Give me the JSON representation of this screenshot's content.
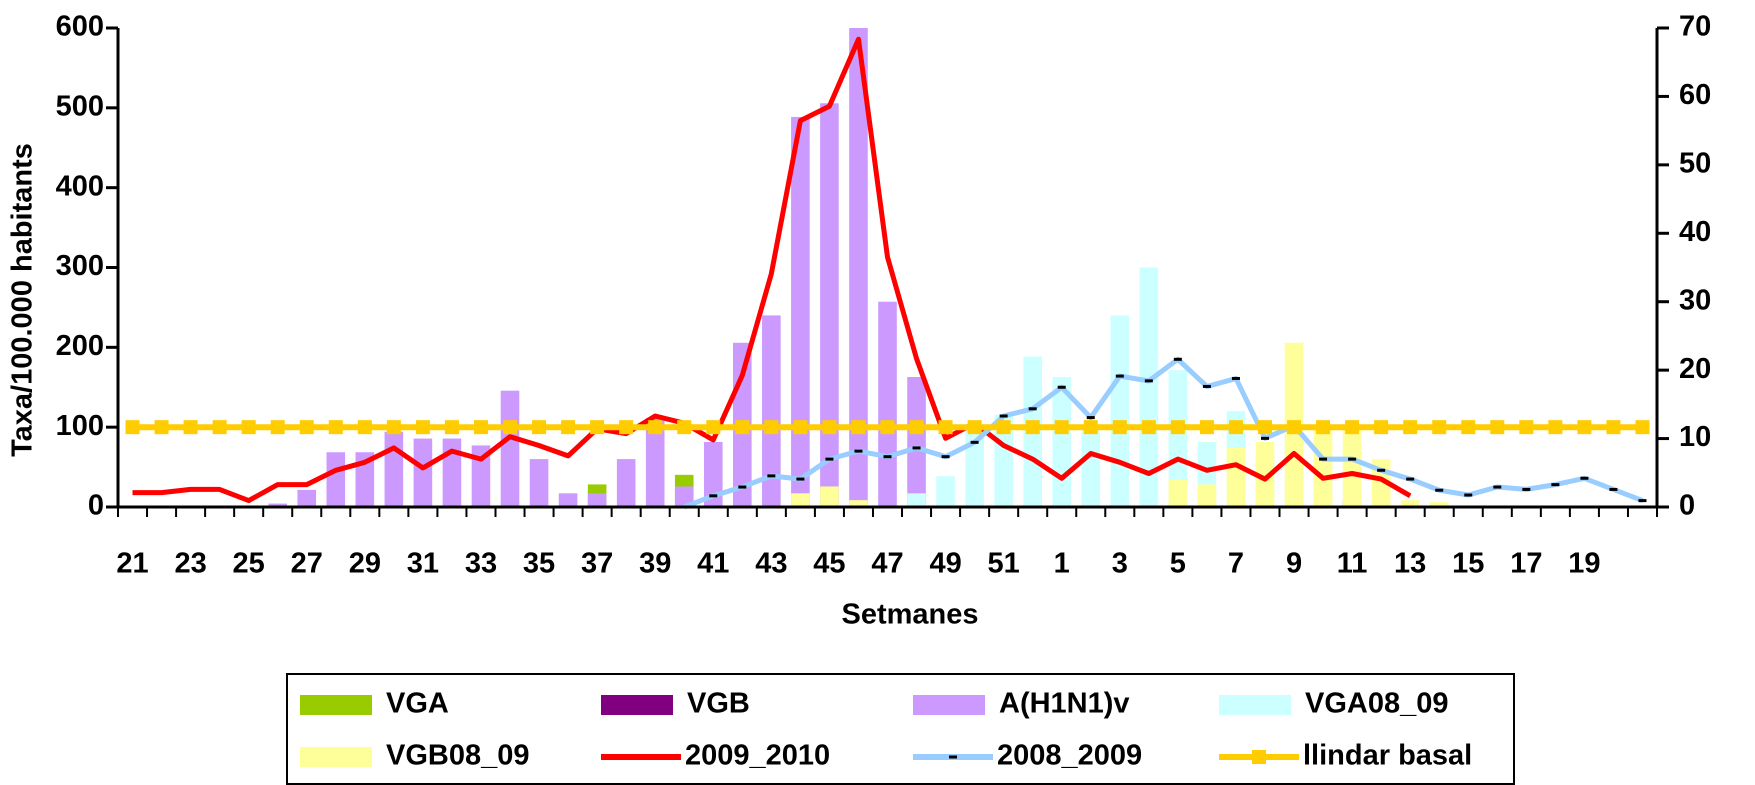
{
  "chart_data": {
    "type": "combo",
    "y_label": "Taxa/100.000 habitants",
    "x_label": "Setmanes",
    "categories": [
      "21",
      null,
      "23",
      null,
      "25",
      null,
      "27",
      null,
      "29",
      null,
      "31",
      null,
      "33",
      null,
      "35",
      null,
      "37",
      null,
      "39",
      null,
      "41",
      null,
      "43",
      null,
      "45",
      null,
      "47",
      null,
      "49",
      null,
      "51",
      null,
      "1",
      null,
      "3",
      null,
      "5",
      null,
      "7",
      null,
      "9",
      null,
      "11",
      null,
      "13",
      null,
      "15",
      null,
      "17",
      null,
      "19",
      null,
      null
    ],
    "ylim": [
      0,
      600
    ],
    "yticks": [
      0,
      100,
      200,
      300,
      400,
      500,
      600
    ],
    "y2lim": [
      0,
      70
    ],
    "y2ticks": [
      0,
      10,
      20,
      30,
      40,
      50,
      60,
      70
    ],
    "series": [
      {
        "name": "VGA",
        "type": "bar",
        "axis": "y2",
        "color": "#99cc00",
        "values": [
          0,
          0,
          0,
          0,
          0,
          0,
          0,
          0,
          0,
          0,
          0,
          0,
          0,
          0,
          0,
          0,
          3.3,
          0,
          0,
          4.7,
          0,
          0,
          0,
          0,
          0,
          0,
          0,
          0,
          0,
          0,
          0,
          0,
          0,
          0,
          0,
          0,
          0,
          0,
          0,
          0,
          0,
          0,
          0,
          0,
          0,
          0,
          0,
          0,
          0,
          0,
          0,
          0,
          0
        ]
      },
      {
        "name": "VGB",
        "type": "bar",
        "axis": "y2",
        "color": "#800080",
        "values": [
          0,
          0,
          0,
          0,
          0,
          0,
          0,
          0,
          0,
          0,
          0,
          0,
          0,
          0,
          0,
          0,
          0,
          0,
          0,
          0,
          0,
          0,
          0,
          0,
          0,
          0,
          0,
          0,
          0,
          0,
          0,
          0,
          0,
          0,
          0,
          0,
          0,
          0,
          0,
          0,
          0,
          0,
          1,
          0,
          0,
          0,
          0,
          0,
          0,
          0,
          0,
          0,
          0
        ]
      },
      {
        "name": "A(H1N1)v",
        "type": "bar",
        "axis": "y2",
        "color": "#cc99ff",
        "values": [
          0,
          0,
          0,
          0,
          0,
          0.5,
          2.5,
          8,
          8,
          11,
          10,
          10,
          9,
          17,
          7,
          2,
          2,
          7,
          13,
          3,
          9.5,
          24,
          28,
          57,
          59,
          70,
          30,
          19,
          0,
          0,
          0,
          0,
          0,
          0,
          0,
          0,
          0,
          0,
          0,
          0,
          0,
          0,
          0,
          0,
          0,
          0,
          0,
          0,
          0,
          0,
          0,
          0,
          0
        ]
      },
      {
        "name": "VGA08_09",
        "type": "bar",
        "axis": "y2",
        "color": "#ccffff",
        "values": [
          0,
          0,
          0,
          0,
          0,
          0,
          0,
          0,
          0,
          0,
          0,
          0,
          0,
          0,
          0,
          0,
          0,
          0,
          0,
          0,
          0,
          0,
          0,
          0,
          0,
          0,
          0,
          2,
          4.5,
          12,
          13.5,
          22,
          19,
          12,
          28,
          35,
          20,
          9.5,
          14,
          7.5,
          12,
          5.5,
          3,
          0,
          0,
          0,
          0,
          0,
          0,
          0,
          0,
          0,
          0
        ]
      },
      {
        "name": "VGB08_09",
        "type": "bar",
        "axis": "y2",
        "color": "#ffff99",
        "values": [
          0,
          0,
          0,
          0,
          0,
          0,
          0,
          0,
          0,
          0,
          0,
          0,
          0,
          0,
          0,
          0,
          0,
          0,
          0,
          0,
          0,
          0,
          0,
          2,
          3,
          1,
          0,
          0,
          0,
          0,
          0,
          0,
          0,
          0,
          0,
          0,
          4,
          3.3,
          8.7,
          9.5,
          24,
          12,
          12,
          7,
          1,
          0.7,
          0,
          0,
          0,
          0,
          0,
          0,
          0
        ]
      },
      {
        "name": "2009_2010",
        "type": "line",
        "color": "#ff0000",
        "values": [
          18,
          18,
          22,
          22,
          8,
          28,
          28,
          46,
          56,
          74,
          49,
          70,
          60,
          88,
          77,
          64,
          98,
          92,
          114,
          105,
          84,
          165,
          292,
          484,
          502,
          586,
          313,
          186,
          86,
          105,
          77,
          60,
          36,
          67,
          56,
          42,
          60,
          46,
          53,
          35,
          67,
          36,
          42,
          35,
          14,
          null,
          null,
          null,
          null,
          null,
          null,
          null,
          null
        ]
      },
      {
        "name": "2008_2009",
        "type": "line",
        "color": "#99ccff",
        "marker": "dash",
        "values": [
          null,
          null,
          null,
          null,
          null,
          null,
          null,
          null,
          null,
          null,
          null,
          null,
          null,
          null,
          null,
          null,
          null,
          null,
          null,
          0,
          14,
          25,
          39,
          35,
          60,
          70,
          63,
          74,
          63,
          81,
          114,
          123,
          150,
          112,
          164,
          158,
          185,
          151,
          161,
          86,
          102,
          60,
          60,
          46,
          35,
          21,
          15,
          25,
          22,
          28,
          36,
          22,
          8
        ]
      },
      {
        "name": "llindar basal",
        "type": "line",
        "color": "#ffcc00",
        "marker": "square",
        "values": [
          100,
          100,
          100,
          100,
          100,
          100,
          100,
          100,
          100,
          100,
          100,
          100,
          100,
          100,
          100,
          100,
          100,
          100,
          100,
          100,
          100,
          100,
          100,
          100,
          100,
          100,
          100,
          100,
          100,
          100,
          100,
          100,
          100,
          100,
          100,
          100,
          100,
          100,
          100,
          100,
          100,
          100,
          100,
          100,
          100,
          100,
          100,
          100,
          100,
          100,
          100,
          100,
          100
        ]
      }
    ]
  }
}
